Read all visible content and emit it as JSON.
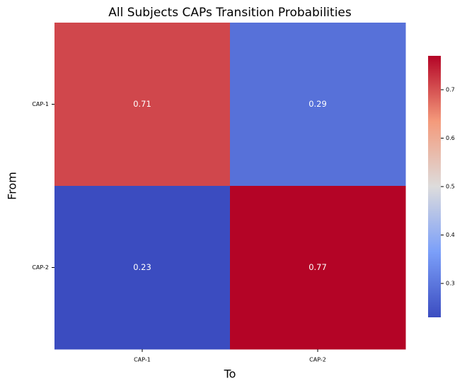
{
  "chart_data": {
    "type": "heatmap",
    "title": "All Subjects CAPs Transition Probabilities",
    "x_label": "To",
    "y_label": "From",
    "x_categories": [
      "CAP-1",
      "CAP-2"
    ],
    "y_categories": [
      "CAP-1",
      "CAP-2"
    ],
    "values": [
      [
        0.71,
        0.29
      ],
      [
        0.23,
        0.77
      ]
    ],
    "colormap": [
      "#3b4cc0",
      "#7b9ff9",
      "#dddcdc",
      "#f49a7b",
      "#b40426"
    ],
    "zlim": [
      0.23,
      0.77
    ],
    "zticks": [
      0.3,
      0.4,
      0.5,
      0.6,
      0.7
    ]
  }
}
